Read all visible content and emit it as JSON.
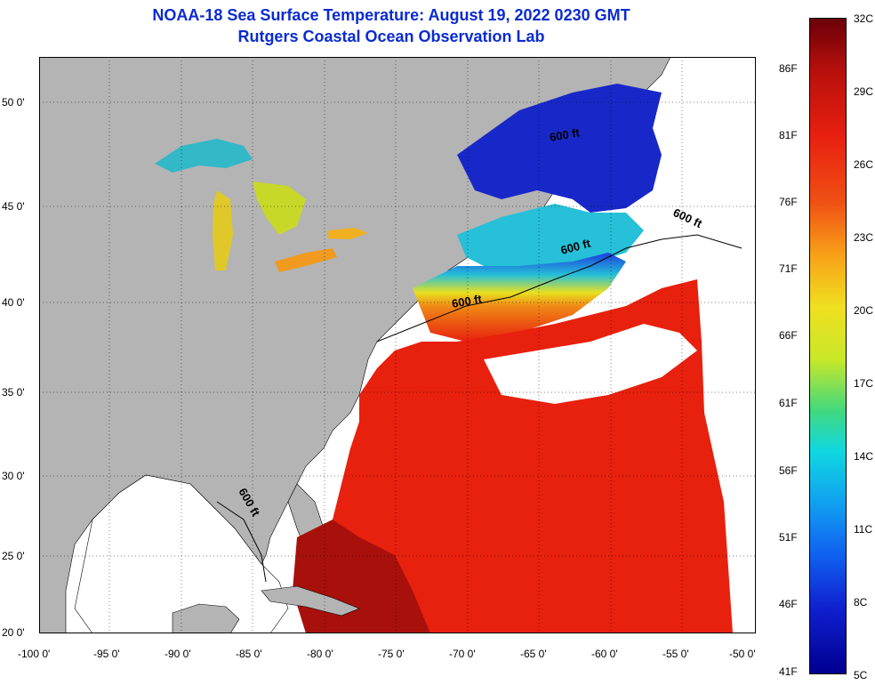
{
  "title": {
    "line1": "NOAA-18 Sea Surface Temperature:  August 19, 2022 0230 GMT",
    "line2": "Rutgers Coastal Ocean Observation Lab"
  },
  "map": {
    "lat_labels": [
      "50 0'",
      "45 0'",
      "40 0'",
      "35 0'",
      "30 0'",
      "25 0'",
      "20 0'"
    ],
    "lon_labels": [
      "-100 0'",
      "-95 0'",
      "-90 0'",
      "-85 0'",
      "-80 0'",
      "-75 0'",
      "-70 0'",
      "-65 0'",
      "-60 0'",
      "-55 0'",
      "-50 0'"
    ],
    "contour_label": "600 ft",
    "colors": {
      "land": "#b4b4b4",
      "cloud": "#ffffff",
      "warm": "#e8200e",
      "hot": "#a8100c",
      "cool": "#26c0d8",
      "cold": "#1828c8"
    }
  },
  "colorbar": {
    "celsius": [
      "32C",
      "29C",
      "26C",
      "23C",
      "20C",
      "17C",
      "14C",
      "11C",
      "8C",
      "5C"
    ],
    "fahrenheit": [
      "86F",
      "81F",
      "76F",
      "71F",
      "66F",
      "61F",
      "56F",
      "51F",
      "46F",
      "41F"
    ]
  }
}
